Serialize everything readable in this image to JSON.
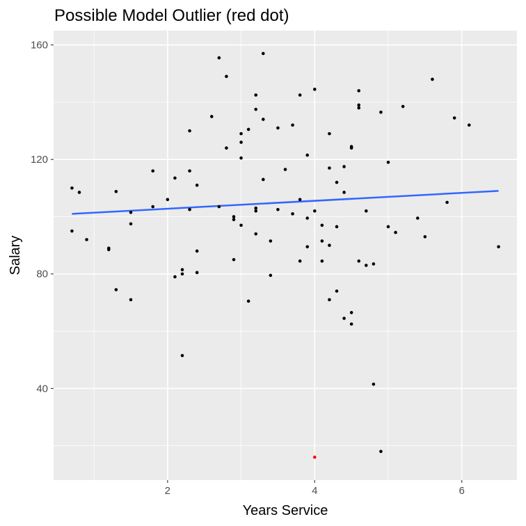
{
  "chart_data": {
    "type": "scatter",
    "title": "Possible Model Outlier (red dot)",
    "xlabel": "Years Service",
    "ylabel": "Salary",
    "xlim": [
      0.45,
      6.75
    ],
    "ylim": [
      8,
      165
    ],
    "x_ticks": [
      2,
      4,
      6
    ],
    "x_tick_labels": [
      "2",
      "4",
      "6"
    ],
    "y_ticks": [
      40,
      80,
      120,
      160
    ],
    "y_tick_labels": [
      "40",
      "80",
      "120",
      "160"
    ],
    "grid": true,
    "colors": {
      "panel_background": "#EBEBEB",
      "grid": "#FFFFFF",
      "point": "#000000",
      "outlier": "#FF0000",
      "fit_line": "#3366FF",
      "tick_text": "#4D4D4D"
    },
    "fit_line": {
      "x": [
        0.7,
        6.5
      ],
      "y": [
        101.0,
        109.0
      ]
    },
    "outlier": {
      "x": 4.0,
      "y": 16.0
    },
    "points": [
      [
        0.7,
        110.0
      ],
      [
        0.8,
        108.5
      ],
      [
        0.7,
        95.0
      ],
      [
        0.9,
        92.0
      ],
      [
        1.2,
        89.0
      ],
      [
        1.2,
        88.5
      ],
      [
        1.3,
        108.8
      ],
      [
        1.3,
        74.5
      ],
      [
        1.5,
        101.5
      ],
      [
        1.5,
        97.5
      ],
      [
        1.5,
        71.0
      ],
      [
        1.8,
        116.0
      ],
      [
        1.8,
        103.5
      ],
      [
        2.0,
        106.0
      ],
      [
        2.1,
        113.5
      ],
      [
        2.1,
        79.0
      ],
      [
        2.2,
        81.5
      ],
      [
        2.2,
        80.0
      ],
      [
        2.2,
        51.5
      ],
      [
        2.3,
        130.0
      ],
      [
        2.3,
        116.0
      ],
      [
        2.3,
        102.5
      ],
      [
        2.4,
        111.0
      ],
      [
        2.4,
        88.0
      ],
      [
        2.4,
        80.5
      ],
      [
        2.6,
        135.0
      ],
      [
        2.7,
        155.5
      ],
      [
        2.7,
        103.5
      ],
      [
        2.8,
        149.0
      ],
      [
        2.8,
        124.0
      ],
      [
        2.9,
        100.0
      ],
      [
        2.9,
        99.0
      ],
      [
        2.9,
        85.0
      ],
      [
        3.0,
        129.0
      ],
      [
        3.0,
        126.0
      ],
      [
        3.0,
        120.5
      ],
      [
        3.0,
        97.0
      ],
      [
        3.1,
        130.5
      ],
      [
        3.1,
        70.5
      ],
      [
        3.2,
        142.5
      ],
      [
        3.2,
        137.5
      ],
      [
        3.2,
        103.0
      ],
      [
        3.2,
        102.0
      ],
      [
        3.2,
        94.0
      ],
      [
        3.3,
        157.0
      ],
      [
        3.3,
        134.0
      ],
      [
        3.3,
        113.0
      ],
      [
        3.4,
        91.5
      ],
      [
        3.4,
        79.5
      ],
      [
        3.5,
        131.0
      ],
      [
        3.5,
        102.5
      ],
      [
        3.6,
        116.5
      ],
      [
        3.7,
        132.0
      ],
      [
        3.7,
        101.0
      ],
      [
        3.8,
        142.5
      ],
      [
        3.8,
        106.0
      ],
      [
        3.8,
        84.5
      ],
      [
        3.9,
        121.5
      ],
      [
        3.9,
        99.5
      ],
      [
        3.9,
        89.5
      ],
      [
        4.0,
        144.5
      ],
      [
        4.0,
        102.0
      ],
      [
        4.1,
        97.0
      ],
      [
        4.1,
        91.5
      ],
      [
        4.1,
        84.5
      ],
      [
        4.2,
        129.0
      ],
      [
        4.2,
        117.0
      ],
      [
        4.2,
        90.0
      ],
      [
        4.2,
        71.0
      ],
      [
        4.3,
        112.0
      ],
      [
        4.3,
        96.5
      ],
      [
        4.3,
        74.0
      ],
      [
        4.4,
        117.5
      ],
      [
        4.4,
        108.5
      ],
      [
        4.4,
        64.5
      ],
      [
        4.5,
        124.5
      ],
      [
        4.5,
        124.0
      ],
      [
        4.5,
        66.5
      ],
      [
        4.5,
        62.5
      ],
      [
        4.6,
        144.0
      ],
      [
        4.6,
        139.0
      ],
      [
        4.6,
        138.0
      ],
      [
        4.6,
        84.5
      ],
      [
        4.7,
        102.0
      ],
      [
        4.7,
        83.0
      ],
      [
        4.8,
        83.5
      ],
      [
        4.8,
        41.5
      ],
      [
        4.9,
        136.5
      ],
      [
        4.9,
        18.0
      ],
      [
        5.0,
        119.0
      ],
      [
        5.0,
        96.5
      ],
      [
        5.1,
        94.5
      ],
      [
        5.2,
        138.5
      ],
      [
        5.4,
        99.5
      ],
      [
        5.5,
        93.0
      ],
      [
        5.6,
        148.0
      ],
      [
        5.8,
        105.0
      ],
      [
        5.9,
        134.5
      ],
      [
        6.1,
        132.0
      ],
      [
        6.5,
        89.5
      ]
    ]
  }
}
